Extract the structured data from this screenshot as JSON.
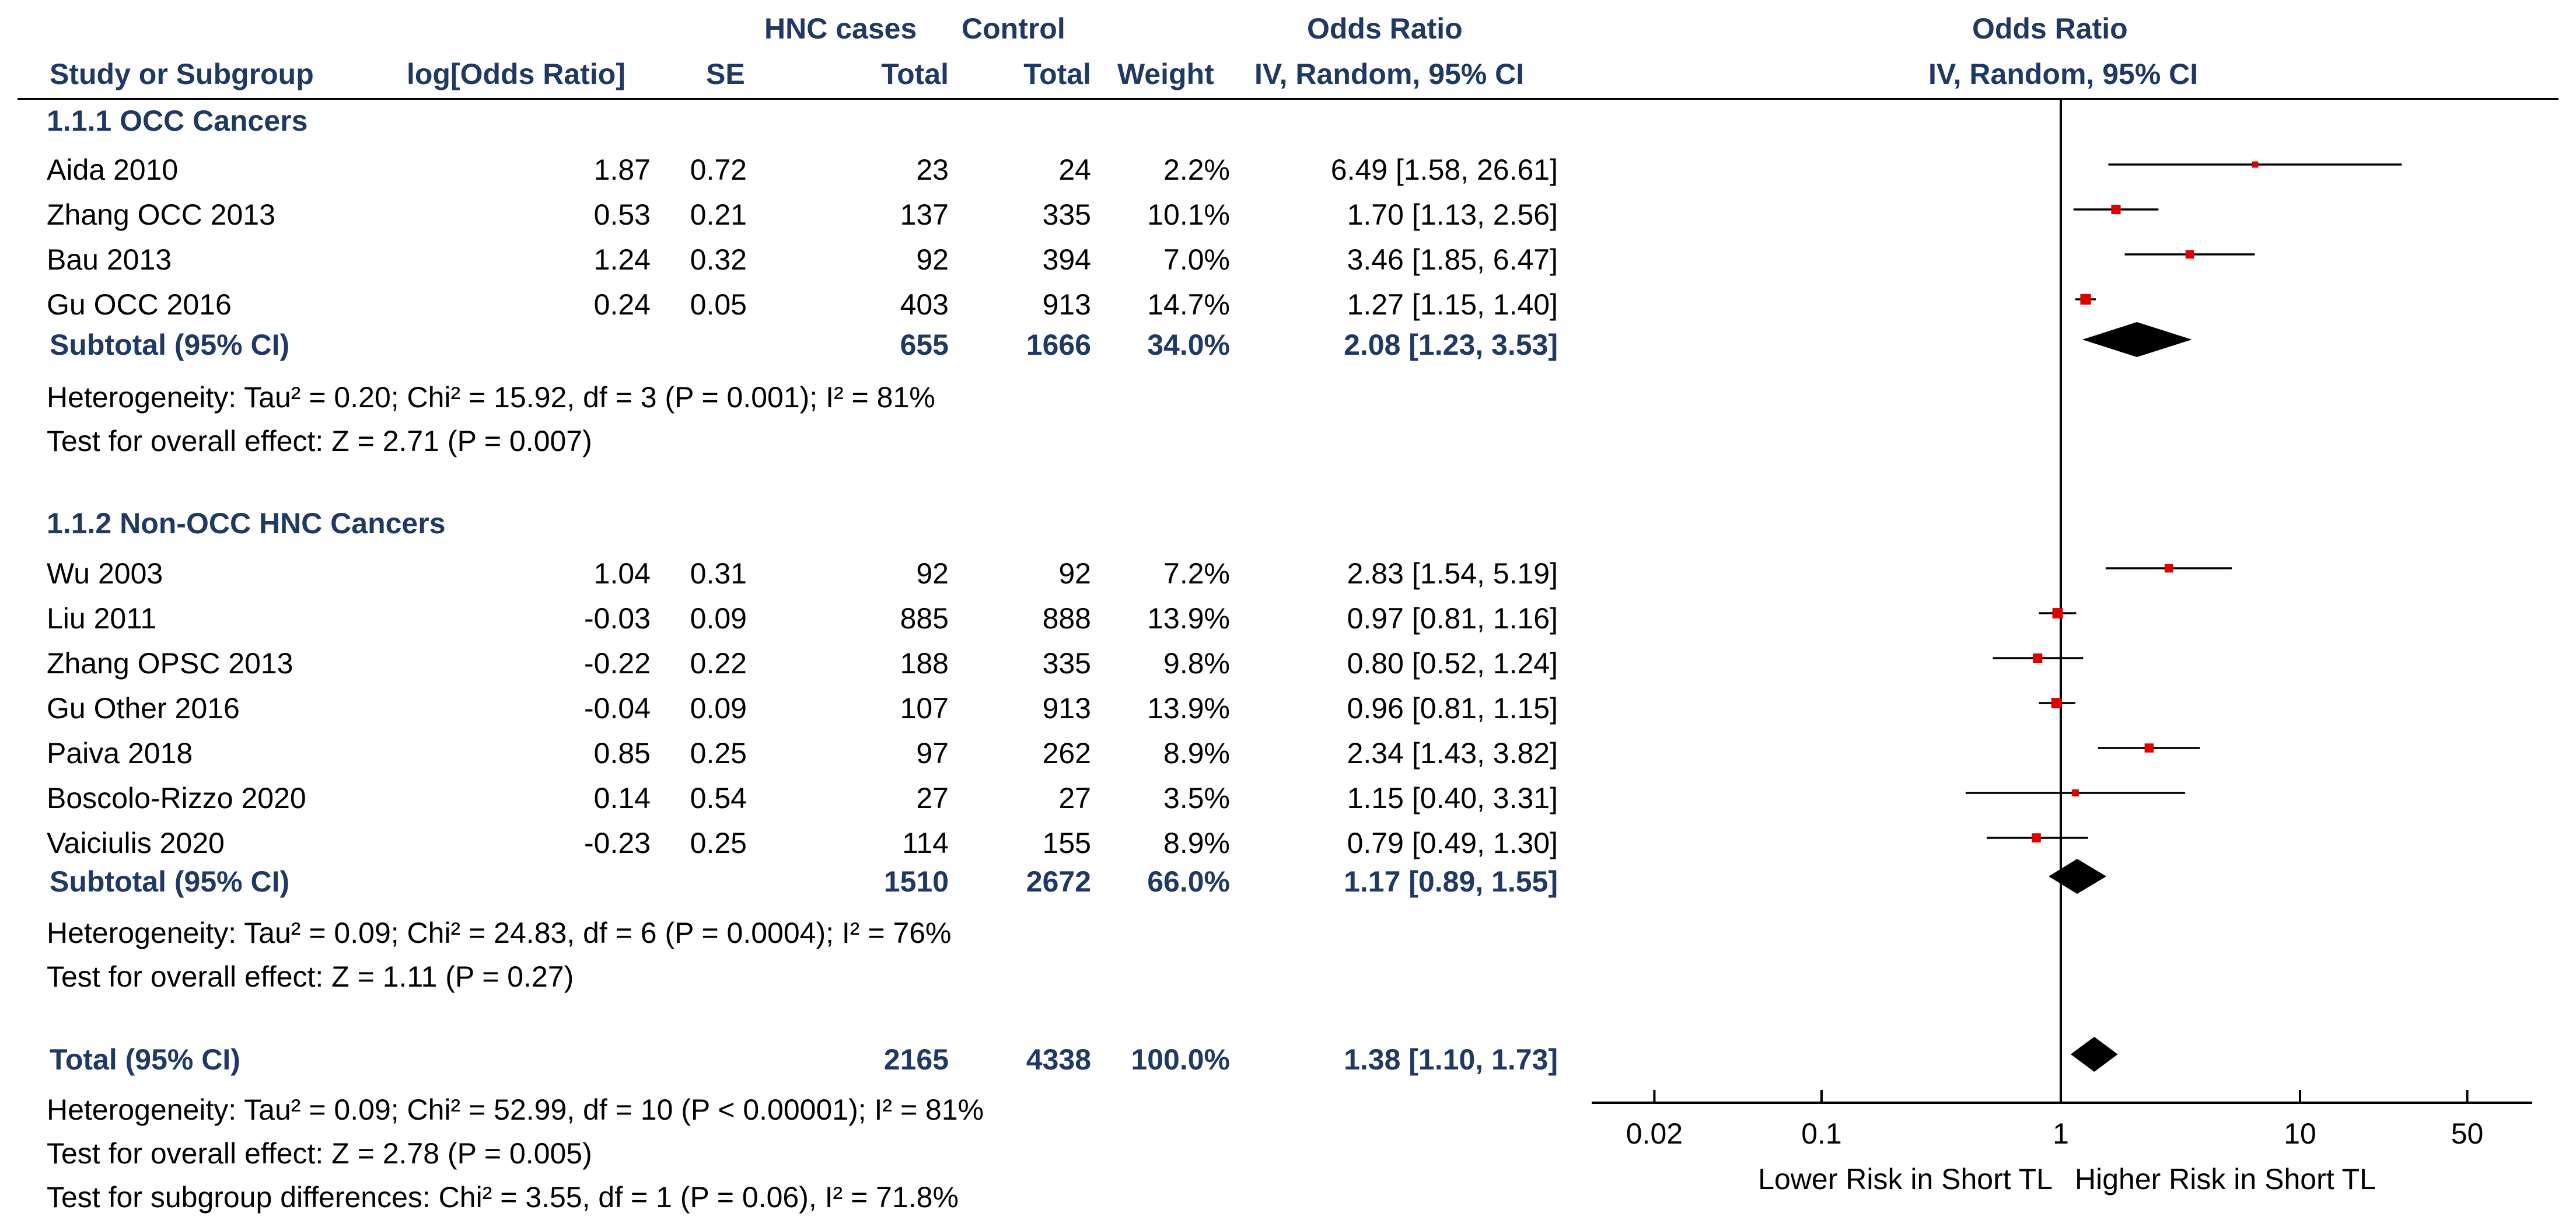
{
  "header": {
    "hnc_cases": "HNC cases",
    "control": "Control",
    "odds_ratio_col": "Odds Ratio",
    "odds_ratio_plot": "Odds Ratio",
    "study": "Study or Subgroup",
    "log_or": "log[Odds Ratio]",
    "se": "SE",
    "total1": "Total",
    "total2": "Total",
    "weight": "Weight",
    "method_col": "IV, Random, 95% CI",
    "method_plot": "IV, Random, 95% CI"
  },
  "groups": [
    {
      "title": "1.1.1 OCC Cancers",
      "rows": [
        {
          "study": "Aida 2010",
          "log_or": "1.87",
          "se": "0.72",
          "cases": "23",
          "control": "24",
          "weight": "2.2%",
          "ci": "6.49 [1.58, 26.61]"
        },
        {
          "study": "Zhang OCC 2013",
          "log_or": "0.53",
          "se": "0.21",
          "cases": "137",
          "control": "335",
          "weight": "10.1%",
          "ci": "1.70 [1.13, 2.56]"
        },
        {
          "study": "Bau 2013",
          "log_or": "1.24",
          "se": "0.32",
          "cases": "92",
          "control": "394",
          "weight": "7.0%",
          "ci": "3.46 [1.85, 6.47]"
        },
        {
          "study": "Gu OCC 2016",
          "log_or": "0.24",
          "se": "0.05",
          "cases": "403",
          "control": "913",
          "weight": "14.7%",
          "ci": "1.27 [1.15, 1.40]"
        }
      ],
      "subtotal": {
        "label": "Subtotal (95% CI)",
        "cases": "655",
        "control": "1666",
        "weight": "34.0%",
        "ci": "2.08 [1.23, 3.53]"
      },
      "heterogeneity": "Heterogeneity: Tau² = 0.20; Chi² = 15.92, df = 3 (P = 0.001); I² = 81%",
      "overall": "Test for overall effect: Z = 2.71 (P = 0.007)"
    },
    {
      "title": "1.1.2 Non-OCC HNC Cancers",
      "rows": [
        {
          "study": "Wu 2003",
          "log_or": "1.04",
          "se": "0.31",
          "cases": "92",
          "control": "92",
          "weight": "7.2%",
          "ci": "2.83 [1.54, 5.19]"
        },
        {
          "study": "Liu 2011",
          "log_or": "-0.03",
          "se": "0.09",
          "cases": "885",
          "control": "888",
          "weight": "13.9%",
          "ci": "0.97 [0.81, 1.16]"
        },
        {
          "study": "Zhang OPSC 2013",
          "log_or": "-0.22",
          "se": "0.22",
          "cases": "188",
          "control": "335",
          "weight": "9.8%",
          "ci": "0.80 [0.52, 1.24]"
        },
        {
          "study": "Gu Other 2016",
          "log_or": "-0.04",
          "se": "0.09",
          "cases": "107",
          "control": "913",
          "weight": "13.9%",
          "ci": "0.96 [0.81, 1.15]"
        },
        {
          "study": "Paiva 2018",
          "log_or": "0.85",
          "se": "0.25",
          "cases": "97",
          "control": "262",
          "weight": "8.9%",
          "ci": "2.34 [1.43, 3.82]"
        },
        {
          "study": "Boscolo-Rizzo 2020",
          "log_or": "0.14",
          "se": "0.54",
          "cases": "27",
          "control": "27",
          "weight": "3.5%",
          "ci": "1.15 [0.40, 3.31]"
        },
        {
          "study": "Vaiciulis 2020",
          "log_or": "-0.23",
          "se": "0.25",
          "cases": "114",
          "control": "155",
          "weight": "8.9%",
          "ci": "0.79 [0.49, 1.30]"
        }
      ],
      "subtotal": {
        "label": "Subtotal (95% CI)",
        "cases": "1510",
        "control": "2672",
        "weight": "66.0%",
        "ci": "1.17 [0.89, 1.55]"
      },
      "heterogeneity": "Heterogeneity: Tau² = 0.09; Chi² = 24.83, df = 6 (P = 0.0004); I² = 76%",
      "overall": "Test for overall effect: Z = 1.11 (P = 0.27)"
    }
  ],
  "total": {
    "label": "Total (95% CI)",
    "cases": "2165",
    "control": "4338",
    "weight": "100.0%",
    "ci": "1.38 [1.10, 1.73]",
    "heterogeneity": "Heterogeneity: Tau² = 0.09; Chi² = 52.99, df = 10 (P < 0.00001); I² = 81%",
    "overall": "Test for overall effect: Z = 2.78 (P = 0.005)",
    "subgroup": "Test for subgroup differences: Chi² = 3.55, df = 1 (P = 0.06), I² = 71.8%"
  },
  "chart_data": {
    "type": "forest",
    "scale": "log",
    "xlim": [
      0.02,
      50
    ],
    "ticks": [
      "0.02",
      "0.1",
      "1",
      "10",
      "50"
    ],
    "tick_values": [
      0.02,
      0.1,
      1,
      10,
      50
    ],
    "left_label": "Lower Risk in Short TL",
    "right_label": "Higher Risk in Short TL",
    "marker_color": "#e00000",
    "studies": [
      {
        "study": "Aida 2010",
        "or": 6.49,
        "lo": 1.58,
        "hi": 26.61,
        "weight": 2.2
      },
      {
        "study": "Zhang OCC 2013",
        "or": 1.7,
        "lo": 1.13,
        "hi": 2.56,
        "weight": 10.1
      },
      {
        "study": "Bau 2013",
        "or": 3.46,
        "lo": 1.85,
        "hi": 6.47,
        "weight": 7.0
      },
      {
        "study": "Gu OCC 2016",
        "or": 1.27,
        "lo": 1.15,
        "hi": 1.4,
        "weight": 14.7
      },
      {
        "study": "Wu 2003",
        "or": 2.83,
        "lo": 1.54,
        "hi": 5.19,
        "weight": 7.2
      },
      {
        "study": "Liu 2011",
        "or": 0.97,
        "lo": 0.81,
        "hi": 1.16,
        "weight": 13.9
      },
      {
        "study": "Zhang OPSC 2013",
        "or": 0.8,
        "lo": 0.52,
        "hi": 1.24,
        "weight": 9.8
      },
      {
        "study": "Gu Other 2016",
        "or": 0.96,
        "lo": 0.81,
        "hi": 1.15,
        "weight": 13.9
      },
      {
        "study": "Paiva 2018",
        "or": 2.34,
        "lo": 1.43,
        "hi": 3.82,
        "weight": 8.9
      },
      {
        "study": "Boscolo-Rizzo 2020",
        "or": 1.15,
        "lo": 0.4,
        "hi": 3.31,
        "weight": 3.5
      },
      {
        "study": "Vaiciulis 2020",
        "or": 0.79,
        "lo": 0.49,
        "hi": 1.3,
        "weight": 8.9
      }
    ],
    "summaries": [
      {
        "label": "Subtotal (95% CI)",
        "or": 2.08,
        "lo": 1.23,
        "hi": 3.53
      },
      {
        "label": "Subtotal (95% CI)",
        "or": 1.17,
        "lo": 0.89,
        "hi": 1.55
      },
      {
        "label": "Total (95% CI)",
        "or": 1.38,
        "lo": 1.1,
        "hi": 1.73
      }
    ]
  }
}
